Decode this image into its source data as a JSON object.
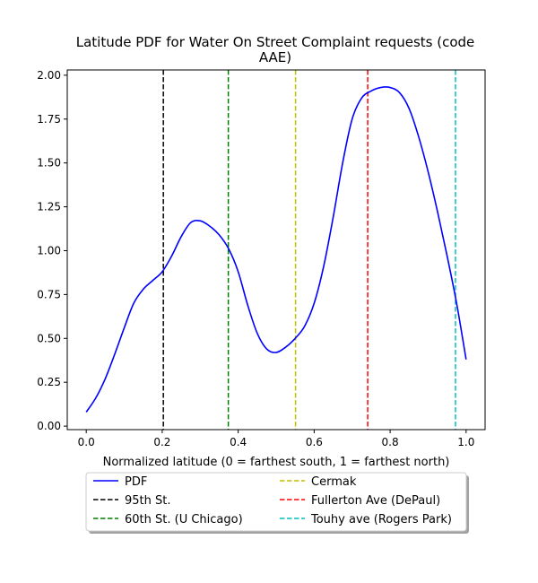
{
  "chart_data": {
    "type": "line",
    "title_lines": [
      "Latitude PDF for Water On Street Complaint  requests (code",
      "AAE)"
    ],
    "xlabel": "Normalized latitude (0 = farthest south, 1 = farthest north)",
    "ylabel": "",
    "xlim": [
      -0.05,
      1.05
    ],
    "ylim": [
      -0.02,
      2.03
    ],
    "x_ticks": [
      0.0,
      0.2,
      0.4,
      0.6,
      0.8,
      1.0
    ],
    "x_tick_labels": [
      "0.0",
      "0.2",
      "0.4",
      "0.6",
      "0.8",
      "1.0"
    ],
    "y_ticks": [
      0.0,
      0.25,
      0.5,
      0.75,
      1.0,
      1.25,
      1.5,
      1.75,
      2.0
    ],
    "y_tick_labels": [
      "0.00",
      "0.25",
      "0.50",
      "0.75",
      "1.00",
      "1.25",
      "1.50",
      "1.75",
      "2.00"
    ],
    "grid": false,
    "legend_position": "bottom-center",
    "series": [
      {
        "name": "PDF",
        "color": "#0000ff",
        "x": [
          0.0,
          0.025,
          0.05,
          0.075,
          0.1,
          0.125,
          0.15,
          0.175,
          0.2,
          0.225,
          0.25,
          0.275,
          0.3,
          0.325,
          0.35,
          0.375,
          0.4,
          0.425,
          0.45,
          0.475,
          0.5,
          0.525,
          0.55,
          0.575,
          0.6,
          0.625,
          0.65,
          0.675,
          0.7,
          0.725,
          0.75,
          0.775,
          0.8,
          0.825,
          0.85,
          0.875,
          0.9,
          0.925,
          0.95,
          0.975,
          1.0
        ],
        "y": [
          0.08,
          0.16,
          0.27,
          0.41,
          0.56,
          0.7,
          0.78,
          0.83,
          0.88,
          0.97,
          1.08,
          1.16,
          1.17,
          1.14,
          1.09,
          1.01,
          0.88,
          0.69,
          0.53,
          0.44,
          0.42,
          0.45,
          0.5,
          0.57,
          0.7,
          0.91,
          1.19,
          1.5,
          1.75,
          1.87,
          1.91,
          1.93,
          1.93,
          1.9,
          1.81,
          1.65,
          1.45,
          1.22,
          0.97,
          0.7,
          0.38
        ]
      }
    ],
    "reference_lines": [
      {
        "name": "95th St.",
        "x": 0.203,
        "color": "#000000"
      },
      {
        "name": "60th St. (U Chicago)",
        "x": 0.374,
        "color": "#008000"
      },
      {
        "name": "Cermak",
        "x": 0.551,
        "color": "#bfbf00"
      },
      {
        "name": "Fullerton Ave (DePaul)",
        "x": 0.741,
        "color": "#ff0000"
      },
      {
        "name": "Touhy ave (Rogers Park)",
        "x": 0.972,
        "color": "#00bfbf"
      }
    ]
  }
}
